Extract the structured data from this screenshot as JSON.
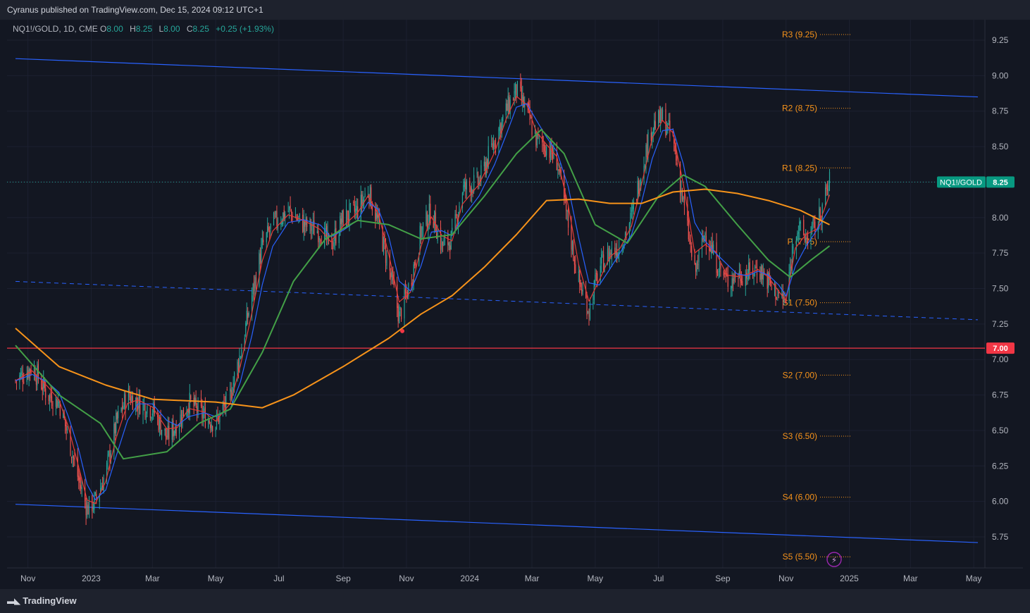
{
  "header": {
    "publisher_line": "Cyranus published on TradingView.com, Dec 15, 2024 09:12 UTC+1"
  },
  "legend": {
    "symbol": "NQ1!/GOLD, 1D, CME",
    "open_label": "O",
    "open": "8.00",
    "high_label": "H",
    "high": "8.25",
    "low_label": "L",
    "low": "8.00",
    "close_label": "C",
    "close": "8.25",
    "change": "+0.25 (+1.93%)"
  },
  "footer": {
    "brand": "TradingView"
  },
  "colors": {
    "background": "#131722",
    "up": "#26a69a",
    "down": "#ef5350",
    "ema_fast_red": "#e53935",
    "ema_blue": "#2962ff",
    "ema_green": "#43a047",
    "ema_orange": "#f7931a",
    "channel": "#2962ff",
    "hline": "#f23645"
  },
  "chart_data": {
    "type": "line",
    "ylim": [
      5.55,
      9.35
    ],
    "y_ticks": [
      "9.25",
      "9.00",
      "8.75",
      "8.50",
      "8.25",
      "8.00",
      "7.75",
      "7.50",
      "7.25",
      "7.00",
      "6.75",
      "6.50",
      "6.25",
      "6.00",
      "5.75"
    ],
    "x_ticks": [
      {
        "label": "Nov",
        "x": "2022-11-01"
      },
      {
        "label": "2023",
        "x": "2023-01-01"
      },
      {
        "label": "Mar",
        "x": "2023-03-01"
      },
      {
        "label": "May",
        "x": "2023-05-01"
      },
      {
        "label": "Jul",
        "x": "2023-07-01"
      },
      {
        "label": "Sep",
        "x": "2023-09-01"
      },
      {
        "label": "Nov",
        "x": "2023-11-01"
      },
      {
        "label": "2024",
        "x": "2024-01-01"
      },
      {
        "label": "Mar",
        "x": "2024-03-01"
      },
      {
        "label": "May",
        "x": "2024-05-01"
      },
      {
        "label": "Jul",
        "x": "2024-07-01"
      },
      {
        "label": "Sep",
        "x": "2024-09-01"
      },
      {
        "label": "Nov",
        "x": "2024-11-01"
      },
      {
        "label": "2025",
        "x": "2025-01-01"
      },
      {
        "label": "Mar",
        "x": "2025-03-01"
      },
      {
        "label": "May",
        "x": "2025-05-01"
      }
    ],
    "price_path": [
      [
        "2022-10-20",
        6.85
      ],
      [
        "2022-11-05",
        6.95
      ],
      [
        "2022-11-20",
        6.75
      ],
      [
        "2022-12-01",
        6.7
      ],
      [
        "2022-12-10",
        6.45
      ],
      [
        "2022-12-20",
        6.15
      ],
      [
        "2022-12-28",
        5.95
      ],
      [
        "2023-01-05",
        6.0
      ],
      [
        "2023-01-15",
        6.2
      ],
      [
        "2023-01-25",
        6.55
      ],
      [
        "2023-02-05",
        6.75
      ],
      [
        "2023-02-15",
        6.7
      ],
      [
        "2023-03-01",
        6.65
      ],
      [
        "2023-03-15",
        6.45
      ],
      [
        "2023-03-25",
        6.55
      ],
      [
        "2023-04-05",
        6.7
      ],
      [
        "2023-04-20",
        6.6
      ],
      [
        "2023-05-01",
        6.55
      ],
      [
        "2023-05-15",
        6.75
      ],
      [
        "2023-05-25",
        7.05
      ],
      [
        "2023-06-05",
        7.45
      ],
      [
        "2023-06-15",
        7.8
      ],
      [
        "2023-06-25",
        7.95
      ],
      [
        "2023-07-10",
        8.05
      ],
      [
        "2023-07-25",
        7.95
      ],
      [
        "2023-08-10",
        7.9
      ],
      [
        "2023-08-20",
        7.8
      ],
      [
        "2023-09-01",
        8.0
      ],
      [
        "2023-09-15",
        8.05
      ],
      [
        "2023-09-25",
        8.2
      ],
      [
        "2023-10-05",
        7.95
      ],
      [
        "2023-10-15",
        7.65
      ],
      [
        "2023-10-25",
        7.3
      ],
      [
        "2023-11-05",
        7.55
      ],
      [
        "2023-11-15",
        7.9
      ],
      [
        "2023-11-25",
        8.05
      ],
      [
        "2023-12-05",
        7.8
      ],
      [
        "2023-12-15",
        7.85
      ],
      [
        "2023-12-25",
        8.2
      ],
      [
        "2024-01-10",
        8.25
      ],
      [
        "2024-01-25",
        8.55
      ],
      [
        "2024-02-05",
        8.75
      ],
      [
        "2024-02-15",
        8.9
      ],
      [
        "2024-02-25",
        8.75
      ],
      [
        "2024-03-05",
        8.55
      ],
      [
        "2024-03-15",
        8.5
      ],
      [
        "2024-03-25",
        8.4
      ],
      [
        "2024-04-05",
        7.95
      ],
      [
        "2024-04-15",
        7.55
      ],
      [
        "2024-04-25",
        7.35
      ],
      [
        "2024-05-05",
        7.65
      ],
      [
        "2024-05-15",
        7.75
      ],
      [
        "2024-05-25",
        7.8
      ],
      [
        "2024-06-05",
        8.0
      ],
      [
        "2024-06-15",
        8.35
      ],
      [
        "2024-06-25",
        8.65
      ],
      [
        "2024-07-05",
        8.7
      ],
      [
        "2024-07-15",
        8.55
      ],
      [
        "2024-07-25",
        8.1
      ],
      [
        "2024-08-05",
        7.6
      ],
      [
        "2024-08-15",
        7.9
      ],
      [
        "2024-08-25",
        7.7
      ],
      [
        "2024-09-05",
        7.55
      ],
      [
        "2024-09-15",
        7.6
      ],
      [
        "2024-09-25",
        7.6
      ],
      [
        "2024-10-05",
        7.65
      ],
      [
        "2024-10-15",
        7.55
      ],
      [
        "2024-10-25",
        7.45
      ],
      [
        "2024-11-01",
        7.4
      ],
      [
        "2024-11-10",
        7.95
      ],
      [
        "2024-11-20",
        7.85
      ],
      [
        "2024-12-01",
        7.95
      ],
      [
        "2024-12-13",
        8.25
      ]
    ],
    "series": [
      {
        "color": "#43a047",
        "values": [
          [
            "2022-10-20",
            7.1
          ],
          [
            "2022-12-01",
            6.75
          ],
          [
            "2023-01-10",
            6.55
          ],
          [
            "2023-02-01",
            6.3
          ],
          [
            "2023-03-15",
            6.35
          ],
          [
            "2023-04-15",
            6.55
          ],
          [
            "2023-05-15",
            6.65
          ],
          [
            "2023-06-15",
            7.05
          ],
          [
            "2023-07-15",
            7.55
          ],
          [
            "2023-08-15",
            7.85
          ],
          [
            "2023-09-15",
            7.98
          ],
          [
            "2023-10-15",
            7.95
          ],
          [
            "2023-11-15",
            7.85
          ],
          [
            "2023-12-15",
            7.88
          ],
          [
            "2024-01-15",
            8.15
          ],
          [
            "2024-02-15",
            8.45
          ],
          [
            "2024-03-10",
            8.62
          ],
          [
            "2024-04-01",
            8.45
          ],
          [
            "2024-05-01",
            7.95
          ],
          [
            "2024-06-01",
            7.82
          ],
          [
            "2024-07-01",
            8.15
          ],
          [
            "2024-07-25",
            8.3
          ],
          [
            "2024-08-15",
            8.22
          ],
          [
            "2024-09-15",
            7.95
          ],
          [
            "2024-10-15",
            7.7
          ],
          [
            "2024-11-05",
            7.58
          ],
          [
            "2024-11-25",
            7.7
          ],
          [
            "2024-12-13",
            7.8
          ]
        ]
      },
      {
        "color": "#f7931a",
        "values": [
          [
            "2022-10-20",
            7.22
          ],
          [
            "2022-12-01",
            6.95
          ],
          [
            "2023-01-15",
            6.82
          ],
          [
            "2023-03-01",
            6.72
          ],
          [
            "2023-05-01",
            6.7
          ],
          [
            "2023-06-15",
            6.66
          ],
          [
            "2023-07-15",
            6.75
          ],
          [
            "2023-09-01",
            6.95
          ],
          [
            "2023-10-15",
            7.15
          ],
          [
            "2023-11-15",
            7.32
          ],
          [
            "2023-12-15",
            7.45
          ],
          [
            "2024-01-15",
            7.65
          ],
          [
            "2024-02-15",
            7.88
          ],
          [
            "2024-03-15",
            8.12
          ],
          [
            "2024-04-15",
            8.13
          ],
          [
            "2024-05-15",
            8.1
          ],
          [
            "2024-06-15",
            8.1
          ],
          [
            "2024-07-15",
            8.18
          ],
          [
            "2024-08-15",
            8.2
          ],
          [
            "2024-09-15",
            8.17
          ],
          [
            "2024-10-15",
            8.12
          ],
          [
            "2024-11-15",
            8.05
          ],
          [
            "2024-12-13",
            7.95
          ]
        ]
      }
    ],
    "pivots": [
      {
        "label": "R3 (9.25)",
        "value": 9.29
      },
      {
        "label": "R2 (8.75)",
        "value": 8.77
      },
      {
        "label": "R1 (8.25)",
        "value": 8.35
      },
      {
        "label": "P (7.75)",
        "value": 7.83
      },
      {
        "label": "S1 (7.50)",
        "value": 7.4
      },
      {
        "label": "S2 (7.00)",
        "value": 6.89
      },
      {
        "label": "S3 (6.50)",
        "value": 6.46
      },
      {
        "label": "S4 (6.00)",
        "value": 6.03
      },
      {
        "label": "S5 (5.50)",
        "value": 5.61
      }
    ],
    "channel": {
      "upper": [
        [
          "2022-10-20",
          9.12
        ],
        [
          "2025-05-05",
          8.85
        ]
      ],
      "lower": [
        [
          "2022-10-20",
          5.98
        ],
        [
          "2025-05-05",
          5.71
        ]
      ],
      "mid": [
        [
          "2022-10-20",
          7.55
        ],
        [
          "2025-05-05",
          7.28
        ]
      ]
    },
    "horizontal_line": {
      "value": 7.08,
      "label": "7.00"
    },
    "last_price": {
      "symbol": "NQ1!/GOLD",
      "value": "8.25",
      "y": 8.25
    },
    "marker": {
      "x": "2023-10-28",
      "y": 7.2
    }
  }
}
